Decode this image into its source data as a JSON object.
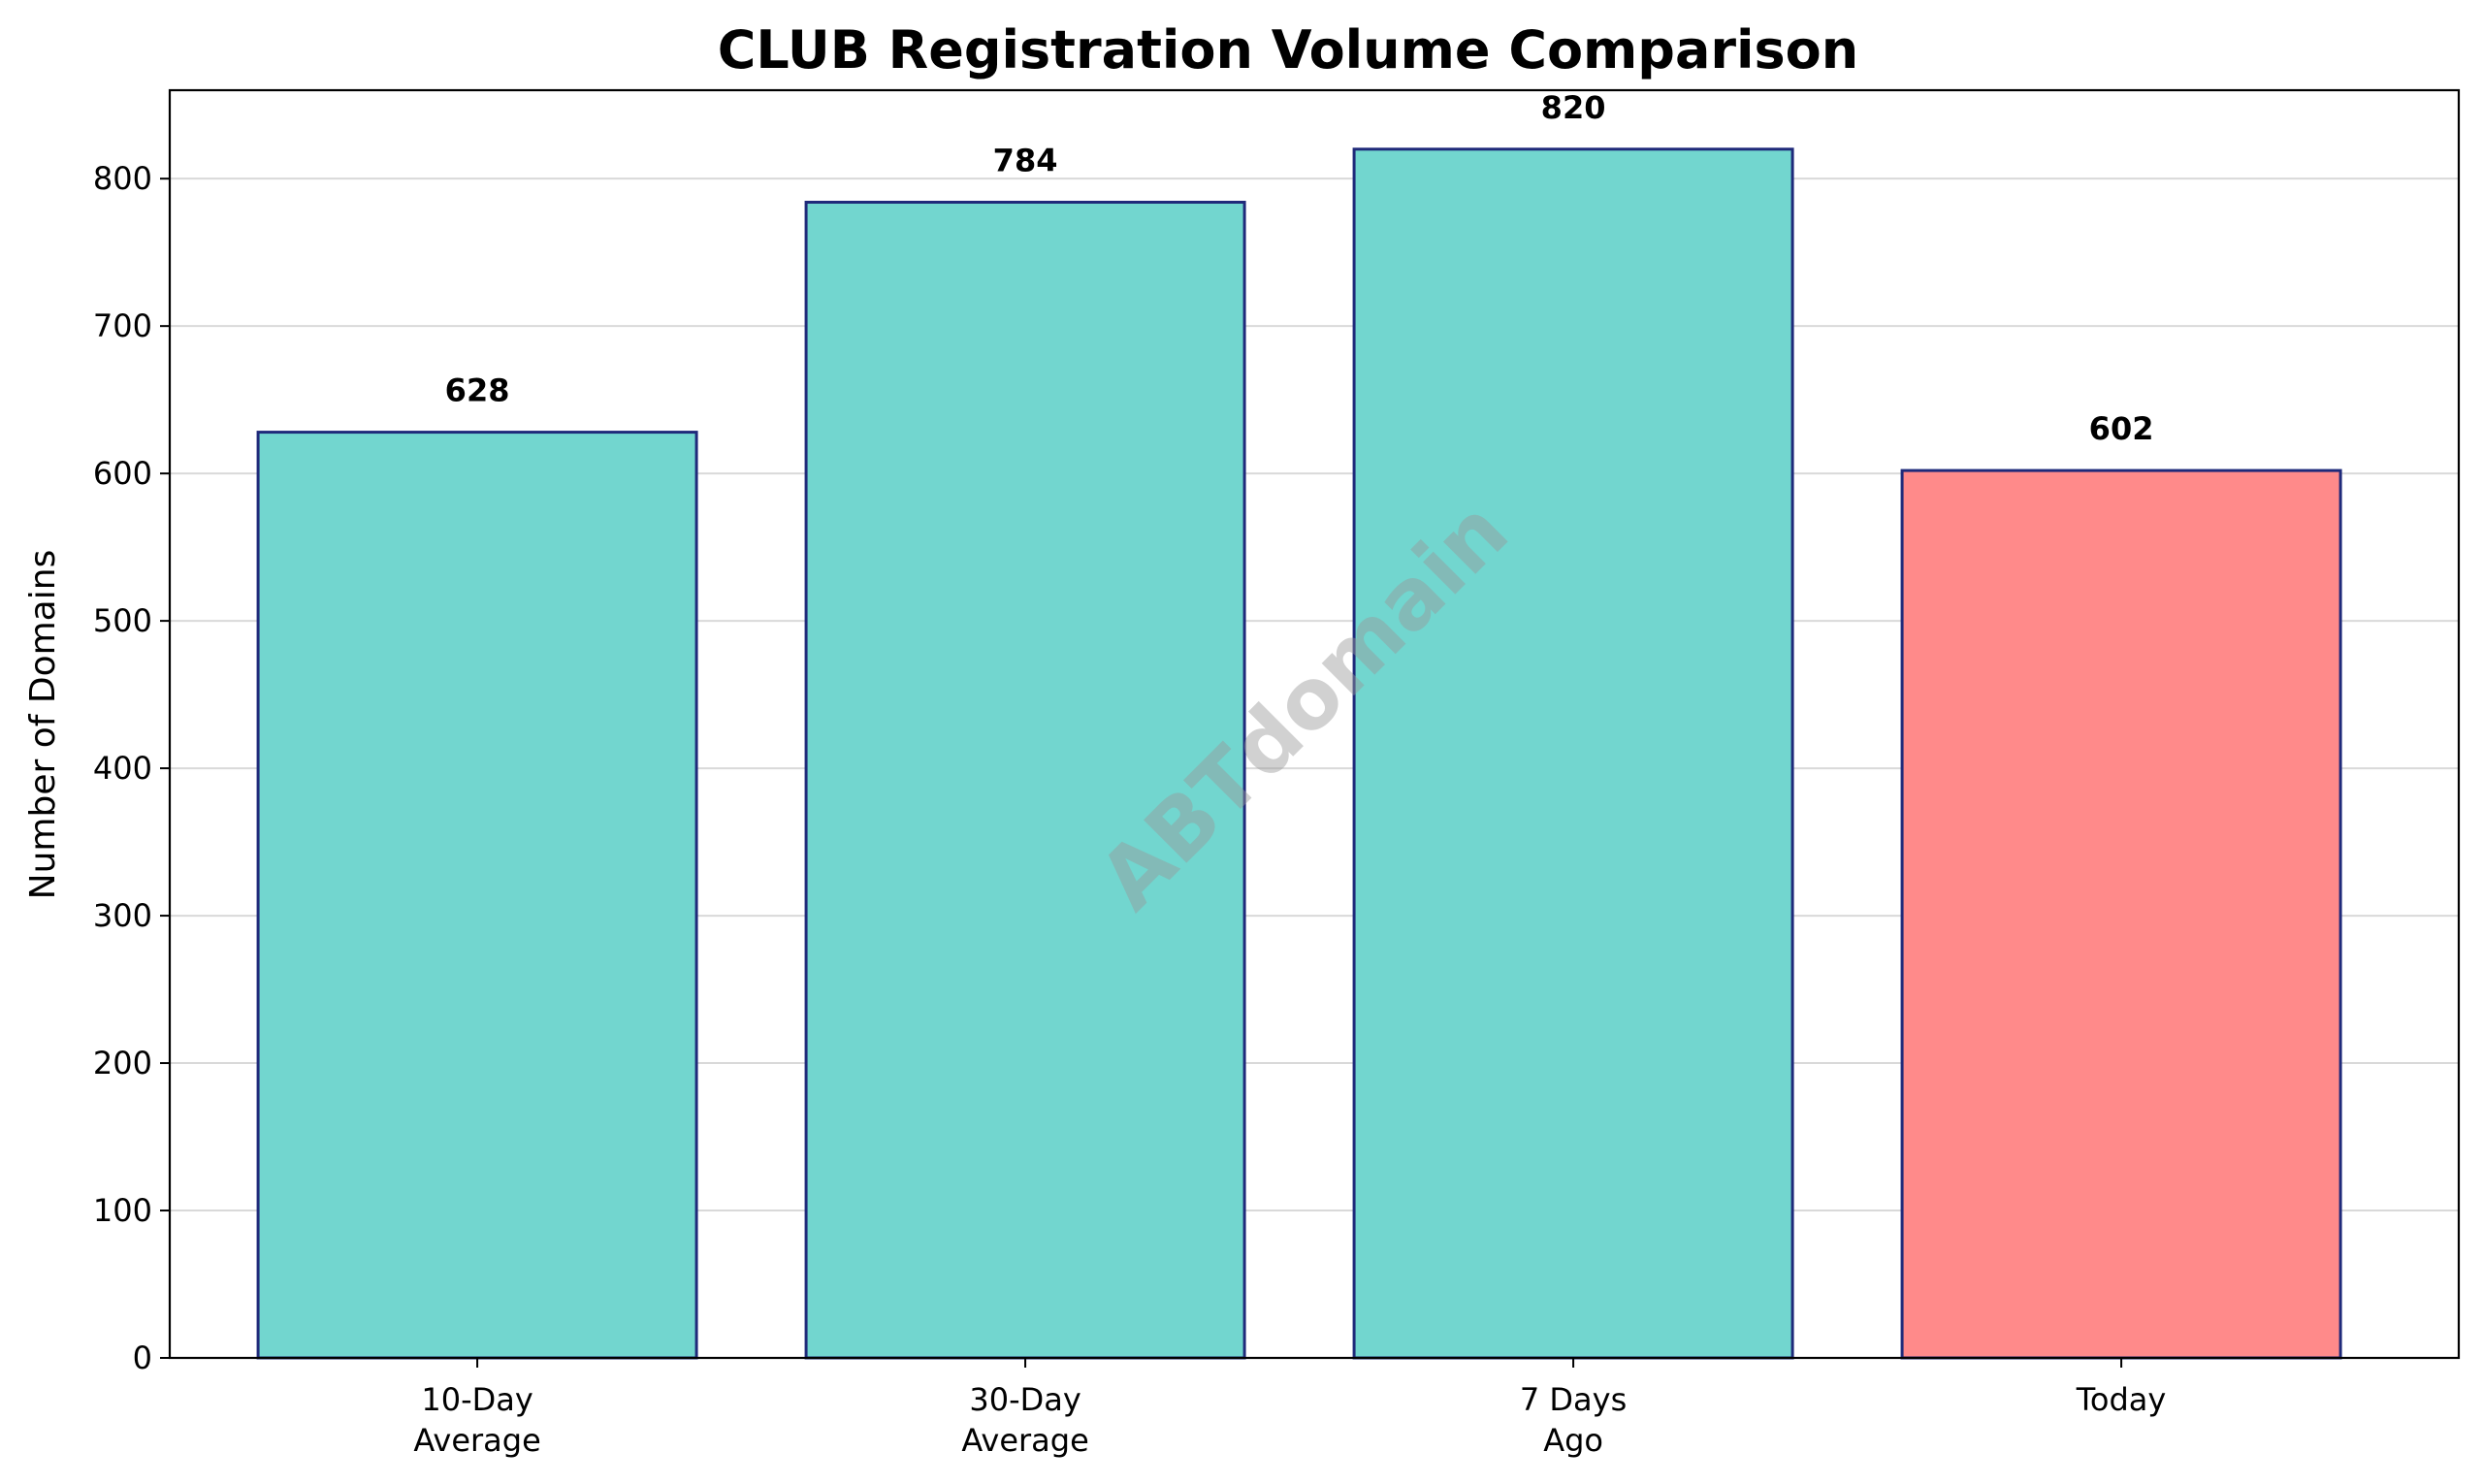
{
  "chart_data": {
    "type": "bar",
    "title": "CLUB Registration Volume Comparison",
    "xlabel": "",
    "ylabel": "Number of Domains",
    "categories": [
      [
        "10-Day",
        "Average"
      ],
      [
        "30-Day",
        "Average"
      ],
      [
        "7 Days",
        "Ago"
      ],
      [
        "Today"
      ]
    ],
    "values": [
      628,
      784,
      820,
      602
    ],
    "value_labels": [
      "628",
      "784",
      "820",
      "602"
    ],
    "ylim": [
      0,
      860
    ],
    "yticks": [
      0,
      100,
      200,
      300,
      400,
      500,
      600,
      700,
      800
    ],
    "ytick_labels": [
      "0",
      "100",
      "200",
      "300",
      "400",
      "500",
      "600",
      "700",
      "800"
    ],
    "grid": "y",
    "bar_colors": [
      "#72d6cf",
      "#72d6cf",
      "#72d6cf",
      "#ff8a8a"
    ],
    "bar_edge_color": "#1f2a7a",
    "watermark": "ABTdomain"
  }
}
